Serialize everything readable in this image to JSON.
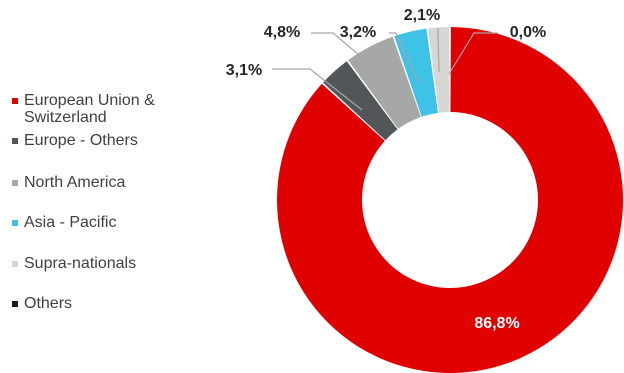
{
  "chart_data": {
    "type": "pie",
    "donut": true,
    "series": [
      {
        "name": "European Union & Switzerland",
        "value": 86.8,
        "label": "86,8%",
        "color": "#e00000"
      },
      {
        "name": "Europe - Others",
        "value": 3.1,
        "label": "3,1%",
        "color": "#525659"
      },
      {
        "name": "North America",
        "value": 4.8,
        "label": "4,8%",
        "color": "#a6a8a7"
      },
      {
        "name": "Asia - Pacific",
        "value": 3.2,
        "label": "3,2%",
        "color": "#3ec2e8"
      },
      {
        "name": "Supra-nationals",
        "value": 2.1,
        "label": "2,1%",
        "color": "#d6d6d4"
      },
      {
        "name": "Others",
        "value": 0.0,
        "label": "0,0%",
        "color": "#1a1a1a"
      }
    ],
    "legend_position": "left"
  }
}
